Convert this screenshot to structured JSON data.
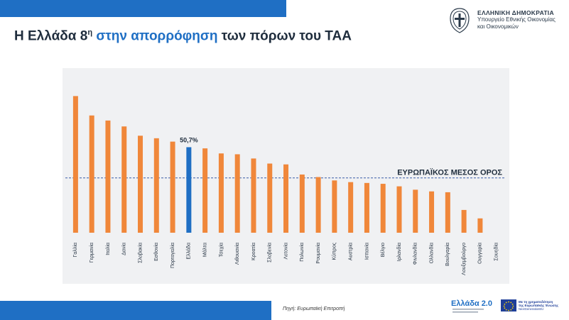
{
  "header": {
    "title_prefix": "Η Ελλάδα 8",
    "title_sup": "η",
    "title_highlight": " στην απορρόφηση",
    "title_suffix": " των πόρων του ΤΑΑ",
    "ministry_head": "ΕΛΛΗΝΙΚΗ ΔΗΜΟΚΡΑΤΙΑ",
    "ministry_line1": "Υπουργείο Εθνικής Οικονομίας",
    "ministry_line2": "και Οικονομικών",
    "emblem_icon": "greek-coat-of-arms-icon"
  },
  "footer": {
    "source": "Πηγή: Ευρωπαϊκή Επιτροπή",
    "logo_greece20": "Ελλάδα 2.0",
    "eu_flag_icon": "eu-flag-icon",
    "eu_text_line1": "Με τη χρηματοδότηση",
    "eu_text_line2": "της Ευρωπαϊκής Ένωσης",
    "eu_text_line3": "NextGenerationEU"
  },
  "colors": {
    "accent": "#1f6fc4",
    "bar": "#f0873a",
    "highlight_bar": "#1f6fc4",
    "average_line": "#3a5fa8",
    "panel": "#f0f1f3"
  },
  "chart_data": {
    "type": "bar",
    "categories": [
      "Γαλλία",
      "Γερμανία",
      "Ιταλία",
      "Δανία",
      "Σλοβακία",
      "Εσθονία",
      "Πορτογαλία",
      "Ελλάδα",
      "Μάλτα",
      "Τσεχία",
      "Λιθουανία",
      "Κροατία",
      "Σλοβενία",
      "Λετονία",
      "Πολωνία",
      "Ρουμανία",
      "Κύπρος",
      "Αυστρία",
      "Ισπανία",
      "Βέλγιο",
      "Ιρλανδία",
      "Φινλανδία",
      "Ολλανδία",
      "Βουλγαρία",
      "Λουξεμβούργο",
      "Ουγγαρία",
      "Σουηδία"
    ],
    "values": [
      81.0,
      69.5,
      66.5,
      63.0,
      57.5,
      56.0,
      54.0,
      50.7,
      50.0,
      47.0,
      46.5,
      44.0,
      41.0,
      40.5,
      34.5,
      33.0,
      31.0,
      30.0,
      29.5,
      29.0,
      27.5,
      25.5,
      24.5,
      24.0,
      13.5,
      8.5,
      0.0
    ],
    "highlight_index": 7,
    "highlight_label": "50,7%",
    "average_label": "ΕΥΡΩΠΑΪΚΟΣ ΜΕΣΟΣ ΟΡΟΣ",
    "average_value": 32.5,
    "ylim": [
      0,
      90
    ],
    "grid": false,
    "title": "",
    "xlabel": "",
    "ylabel": ""
  }
}
